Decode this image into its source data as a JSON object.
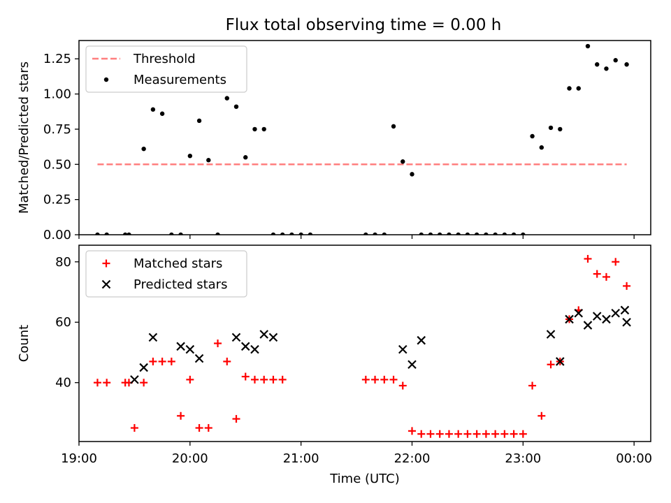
{
  "figure": {
    "title": "Flux total observing time = 0.00 h"
  },
  "colors": {
    "threshold": "#ff7f7f",
    "measurement": "#000000",
    "matched": "#ff0000",
    "predicted": "#000000"
  },
  "chart_data": [
    {
      "type": "scatter",
      "ylabel": "Matched/Predicted stars",
      "xlabel": "",
      "ylim": [
        0,
        1.38
      ],
      "yticks": [
        "0.00",
        "0.25",
        "0.50",
        "0.75",
        "1.00",
        "1.25"
      ],
      "xlim": [
        "19:00",
        "00:09"
      ],
      "legend_position": "upper left",
      "series": [
        {
          "name": "Threshold",
          "style": "dashed-line",
          "x": [
            "19:10",
            "23:56"
          ],
          "y": [
            0.5,
            0.5
          ]
        },
        {
          "name": "Measurements",
          "style": "dot",
          "x": [
            "19:10",
            "19:15",
            "19:25",
            "19:27",
            "19:35",
            "19:40",
            "19:45",
            "19:50",
            "19:55",
            "20:00",
            "20:05",
            "20:10",
            "20:15",
            "20:20",
            "20:25",
            "20:30",
            "20:35",
            "20:40",
            "20:45",
            "20:50",
            "20:55",
            "21:00",
            "21:05",
            "21:35",
            "21:40",
            "21:45",
            "21:50",
            "21:55",
            "22:00",
            "22:05",
            "22:10",
            "22:15",
            "22:20",
            "22:25",
            "22:30",
            "22:35",
            "22:40",
            "22:45",
            "22:50",
            "22:55",
            "23:00",
            "23:05",
            "23:10",
            "23:15",
            "23:20",
            "23:25",
            "23:30",
            "23:35",
            "23:40",
            "23:45",
            "23:50",
            "23:56"
          ],
          "y": [
            0,
            0,
            0,
            0,
            0.61,
            0.89,
            0.86,
            0,
            0,
            0.56,
            0.81,
            0.53,
            0,
            0.97,
            0.91,
            0.55,
            0.75,
            0.75,
            0,
            0,
            0,
            0,
            0,
            0,
            0,
            0,
            0.77,
            0.52,
            0.43,
            0,
            0,
            0,
            0,
            0,
            0,
            0,
            0,
            0,
            0,
            0,
            0,
            0.7,
            0.62,
            0.76,
            0.75,
            1.04,
            1.04,
            1.34,
            1.21,
            1.18,
            1.24,
            1.21
          ]
        }
      ]
    },
    {
      "type": "scatter",
      "ylabel": "Count",
      "xlabel": "Time (UTC)",
      "ylim": [
        20.5,
        85.5
      ],
      "yticks": [
        "40",
        "60",
        "80"
      ],
      "xticks": [
        "19:00",
        "20:00",
        "21:00",
        "22:00",
        "23:00",
        "00:00"
      ],
      "xlim": [
        "19:00",
        "00:09"
      ],
      "legend_position": "upper left",
      "series": [
        {
          "name": "Matched stars",
          "marker": "plus",
          "x": [
            "19:10",
            "19:15",
            "19:25",
            "19:27",
            "19:30",
            "19:35",
            "19:40",
            "19:45",
            "19:50",
            "19:55",
            "20:00",
            "20:05",
            "20:10",
            "20:15",
            "20:20",
            "20:25",
            "20:30",
            "20:35",
            "20:40",
            "20:45",
            "20:50",
            "21:35",
            "21:40",
            "21:45",
            "21:50",
            "21:55",
            "22:00",
            "22:05",
            "22:10",
            "22:15",
            "22:20",
            "22:25",
            "22:30",
            "22:35",
            "22:40",
            "22:45",
            "22:50",
            "22:55",
            "23:00",
            "23:05",
            "23:10",
            "23:15",
            "23:20",
            "23:25",
            "23:30",
            "23:35",
            "23:40",
            "23:45",
            "23:50",
            "23:56"
          ],
          "y": [
            40,
            40,
            40,
            40,
            25,
            40,
            47,
            47,
            47,
            29,
            41,
            25,
            25,
            53,
            47,
            28,
            42,
            41,
            41,
            41,
            41,
            41,
            41,
            41,
            41,
            39,
            24,
            23,
            23,
            23,
            23,
            23,
            23,
            23,
            23,
            23,
            23,
            23,
            23,
            39,
            29,
            46,
            47,
            61,
            64,
            81,
            76,
            75,
            80,
            72
          ]
        },
        {
          "name": "Predicted stars",
          "marker": "x",
          "x": [
            "19:30",
            "19:35",
            "19:40",
            "19:55",
            "20:00",
            "20:05",
            "20:25",
            "20:30",
            "20:35",
            "20:40",
            "20:45",
            "21:55",
            "22:00",
            "22:05",
            "23:15",
            "23:20",
            "23:25",
            "23:30",
            "23:35",
            "23:40",
            "23:45",
            "23:50",
            "23:55",
            "23:56"
          ],
          "y": [
            41,
            45,
            55,
            52,
            51,
            48,
            55,
            52,
            51,
            56,
            55,
            51,
            46,
            54,
            56,
            47,
            61,
            63,
            59,
            62,
            61,
            63,
            64,
            60
          ]
        }
      ]
    }
  ]
}
